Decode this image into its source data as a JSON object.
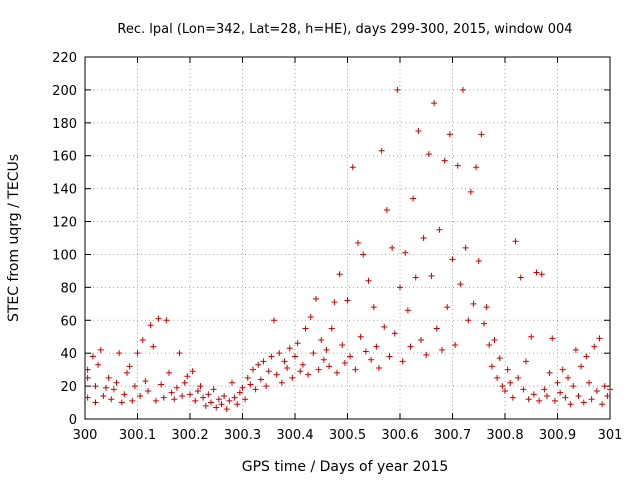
{
  "chart_data": {
    "type": "scatter",
    "title": "Rec. lpal (Lon=342, Lat=28, h=HE), days 299-300, 2015, window 004",
    "xlabel": "GPS time / Days of year 2015",
    "ylabel": "STEC from uqrg / TECUs",
    "xlim": [
      300,
      301
    ],
    "ylim": [
      0,
      220
    ],
    "x_ticks": [
      300,
      300.1,
      300.2,
      300.3,
      300.4,
      300.5,
      300.6,
      300.7,
      300.8,
      300.9,
      301
    ],
    "x_tick_labels": [
      "300",
      "300.1",
      "300.2",
      "300.3",
      "300.4",
      "300.5",
      "300.6",
      "300.7",
      "300.8",
      "300.9",
      "301"
    ],
    "y_ticks": [
      0,
      20,
      40,
      60,
      80,
      100,
      120,
      140,
      160,
      180,
      200,
      220
    ],
    "y_tick_labels": [
      "0",
      "20",
      "40",
      "60",
      "80",
      "100",
      "120",
      "140",
      "160",
      "180",
      "200",
      "220"
    ],
    "grid": true,
    "marker": "+",
    "color": "#cc0000",
    "series": [
      {
        "name": "STEC",
        "points": [
          [
            300.005,
            13
          ],
          [
            300.005,
            25
          ],
          [
            300.005,
            30
          ],
          [
            300.015,
            38
          ],
          [
            300.02,
            10
          ],
          [
            300.02,
            20
          ],
          [
            300.025,
            33
          ],
          [
            300.03,
            42
          ],
          [
            300.035,
            14
          ],
          [
            300.04,
            19
          ],
          [
            300.045,
            25
          ],
          [
            300.05,
            12
          ],
          [
            300.055,
            18
          ],
          [
            300.06,
            22
          ],
          [
            300.065,
            40
          ],
          [
            300.07,
            10
          ],
          [
            300.075,
            15
          ],
          [
            300.08,
            28
          ],
          [
            300.085,
            32
          ],
          [
            300.09,
            11
          ],
          [
            300.095,
            20
          ],
          [
            300.1,
            40
          ],
          [
            300.105,
            14
          ],
          [
            300.11,
            48
          ],
          [
            300.115,
            23
          ],
          [
            300.12,
            17
          ],
          [
            300.125,
            57
          ],
          [
            300.13,
            44
          ],
          [
            300.135,
            11
          ],
          [
            300.14,
            61
          ],
          [
            300.145,
            21
          ],
          [
            300.15,
            13
          ],
          [
            300.155,
            60
          ],
          [
            300.16,
            28
          ],
          [
            300.165,
            16
          ],
          [
            300.17,
            12
          ],
          [
            300.175,
            19
          ],
          [
            300.18,
            40
          ],
          [
            300.185,
            14
          ],
          [
            300.19,
            22
          ],
          [
            300.195,
            26
          ],
          [
            300.2,
            15
          ],
          [
            300.205,
            29
          ],
          [
            300.21,
            11
          ],
          [
            300.215,
            17
          ],
          [
            300.22,
            20
          ],
          [
            300.225,
            13
          ],
          [
            300.23,
            8
          ],
          [
            300.235,
            15
          ],
          [
            300.24,
            10
          ],
          [
            300.245,
            18
          ],
          [
            300.25,
            7
          ],
          [
            300.255,
            12
          ],
          [
            300.26,
            9
          ],
          [
            300.265,
            14
          ],
          [
            300.27,
            6
          ],
          [
            300.275,
            11
          ],
          [
            300.28,
            22
          ],
          [
            300.285,
            13
          ],
          [
            300.29,
            9
          ],
          [
            300.295,
            16
          ],
          [
            300.3,
            19
          ],
          [
            300.305,
            12
          ],
          [
            300.31,
            25
          ],
          [
            300.315,
            21
          ],
          [
            300.32,
            30
          ],
          [
            300.325,
            18
          ],
          [
            300.33,
            33
          ],
          [
            300.335,
            24
          ],
          [
            300.34,
            35
          ],
          [
            300.345,
            20
          ],
          [
            300.35,
            29
          ],
          [
            300.355,
            38
          ],
          [
            300.36,
            60
          ],
          [
            300.365,
            27
          ],
          [
            300.37,
            40
          ],
          [
            300.375,
            22
          ],
          [
            300.38,
            35
          ],
          [
            300.385,
            31
          ],
          [
            300.39,
            43
          ],
          [
            300.395,
            25
          ],
          [
            300.4,
            38
          ],
          [
            300.405,
            46
          ],
          [
            300.41,
            29
          ],
          [
            300.415,
            33
          ],
          [
            300.42,
            55
          ],
          [
            300.425,
            27
          ],
          [
            300.43,
            62
          ],
          [
            300.435,
            40
          ],
          [
            300.44,
            73
          ],
          [
            300.445,
            30
          ],
          [
            300.45,
            48
          ],
          [
            300.455,
            36
          ],
          [
            300.46,
            42
          ],
          [
            300.465,
            32
          ],
          [
            300.47,
            55
          ],
          [
            300.475,
            71
          ],
          [
            300.48,
            28
          ],
          [
            300.485,
            88
          ],
          [
            300.49,
            45
          ],
          [
            300.495,
            34
          ],
          [
            300.5,
            72
          ],
          [
            300.505,
            38
          ],
          [
            300.51,
            153
          ],
          [
            300.515,
            30
          ],
          [
            300.52,
            107
          ],
          [
            300.525,
            50
          ],
          [
            300.53,
            100
          ],
          [
            300.535,
            41
          ],
          [
            300.54,
            84
          ],
          [
            300.545,
            36
          ],
          [
            300.55,
            68
          ],
          [
            300.555,
            44
          ],
          [
            300.56,
            31
          ],
          [
            300.565,
            163
          ],
          [
            300.57,
            56
          ],
          [
            300.575,
            127
          ],
          [
            300.58,
            38
          ],
          [
            300.585,
            104
          ],
          [
            300.59,
            52
          ],
          [
            300.595,
            200
          ],
          [
            300.6,
            80
          ],
          [
            300.605,
            35
          ],
          [
            300.61,
            101
          ],
          [
            300.615,
            66
          ],
          [
            300.62,
            44
          ],
          [
            300.625,
            134
          ],
          [
            300.63,
            86
          ],
          [
            300.635,
            175
          ],
          [
            300.64,
            48
          ],
          [
            300.645,
            110
          ],
          [
            300.65,
            39
          ],
          [
            300.655,
            161
          ],
          [
            300.66,
            87
          ],
          [
            300.665,
            192
          ],
          [
            300.67,
            55
          ],
          [
            300.675,
            115
          ],
          [
            300.68,
            42
          ],
          [
            300.685,
            157
          ],
          [
            300.69,
            68
          ],
          [
            300.695,
            173
          ],
          [
            300.7,
            97
          ],
          [
            300.705,
            45
          ],
          [
            300.71,
            154
          ],
          [
            300.715,
            82
          ],
          [
            300.72,
            200
          ],
          [
            300.725,
            104
          ],
          [
            300.73,
            60
          ],
          [
            300.735,
            138
          ],
          [
            300.74,
            70
          ],
          [
            300.745,
            153
          ],
          [
            300.75,
            96
          ],
          [
            300.755,
            173
          ],
          [
            300.76,
            58
          ],
          [
            300.765,
            68
          ],
          [
            300.77,
            45
          ],
          [
            300.775,
            32
          ],
          [
            300.78,
            48
          ],
          [
            300.785,
            25
          ],
          [
            300.79,
            37
          ],
          [
            300.795,
            20
          ],
          [
            300.8,
            17
          ],
          [
            300.805,
            30
          ],
          [
            300.81,
            22
          ],
          [
            300.815,
            13
          ],
          [
            300.82,
            108
          ],
          [
            300.825,
            25
          ],
          [
            300.83,
            86
          ],
          [
            300.835,
            18
          ],
          [
            300.84,
            35
          ],
          [
            300.845,
            12
          ],
          [
            300.85,
            50
          ],
          [
            300.855,
            15
          ],
          [
            300.86,
            89
          ],
          [
            300.865,
            11
          ],
          [
            300.87,
            88
          ],
          [
            300.875,
            18
          ],
          [
            300.88,
            14
          ],
          [
            300.885,
            28
          ],
          [
            300.89,
            49
          ],
          [
            300.895,
            11
          ],
          [
            300.9,
            22
          ],
          [
            300.905,
            16
          ],
          [
            300.91,
            30
          ],
          [
            300.915,
            13
          ],
          [
            300.92,
            25
          ],
          [
            300.925,
            9
          ],
          [
            300.93,
            20
          ],
          [
            300.935,
            42
          ],
          [
            300.94,
            14
          ],
          [
            300.945,
            32
          ],
          [
            300.95,
            10
          ],
          [
            300.955,
            38
          ],
          [
            300.96,
            22
          ],
          [
            300.965,
            12
          ],
          [
            300.97,
            44
          ],
          [
            300.975,
            17
          ],
          [
            300.98,
            49
          ],
          [
            300.985,
            9
          ],
          [
            300.99,
            20
          ],
          [
            300.995,
            14
          ],
          [
            301.0,
            18
          ]
        ]
      }
    ]
  }
}
